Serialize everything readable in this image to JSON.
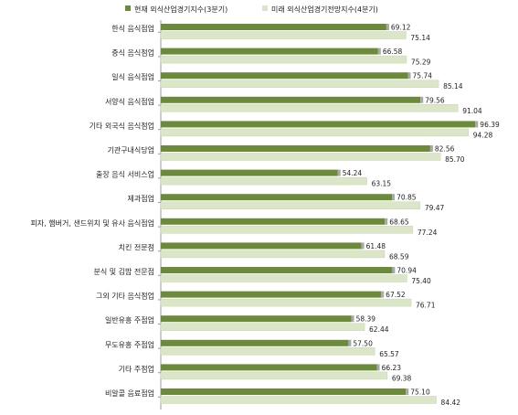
{
  "chart_data": {
    "type": "bar",
    "orientation": "horizontal",
    "legend_position": "top",
    "grid": false,
    "xlim": [
      0,
      100
    ],
    "categories": [
      "한식 음식점업",
      "중식 음식점업",
      "일식 음식점업",
      "서양식 음식점업",
      "기타 외국식 음식점업",
      "기관구내식당업",
      "출장 음식 서비스업",
      "제과점업",
      "피자, 햄버거, 샌드위치 및 유사 음식점업",
      "치킨 전문점",
      "분식 및 김밥 전문점",
      "그외 기타 음식점업",
      "일반유흥 주점업",
      "무도유흥 주점업",
      "기타 주점업",
      "비알콜 음료점업"
    ],
    "series": [
      {
        "name": "현재 외식산업경기지수(3분기)",
        "color": "#6b8b3a",
        "values": [
          69.12,
          66.58,
          75.74,
          79.56,
          96.39,
          82.56,
          54.24,
          70.85,
          68.65,
          61.48,
          70.94,
          67.52,
          58.39,
          57.5,
          66.23,
          75.1
        ],
        "labels": [
          "69.12",
          "66.58",
          "75.74",
          "79.56",
          "96.39",
          "82.56",
          "54.24",
          "70.85",
          "68.65",
          "61.48",
          "70.94",
          "67.52",
          "58.39",
          "57.50",
          "66.23",
          "75.10"
        ]
      },
      {
        "name": "미래 외식산업경기전망지수(4분기)",
        "color": "#dbe6c8",
        "values": [
          75.14,
          75.29,
          85.14,
          91.04,
          94.28,
          85.7,
          63.15,
          79.47,
          77.24,
          68.59,
          75.4,
          76.71,
          62.44,
          65.57,
          69.38,
          84.42
        ],
        "labels": [
          "75.14",
          "75.29",
          "85.14",
          "91.04",
          "94.28",
          "85.70",
          "63.15",
          "79.47",
          "77.24",
          "68.59",
          "75.40",
          "76.71",
          "62.44",
          "65.57",
          "69.38",
          "84.42"
        ]
      }
    ]
  }
}
